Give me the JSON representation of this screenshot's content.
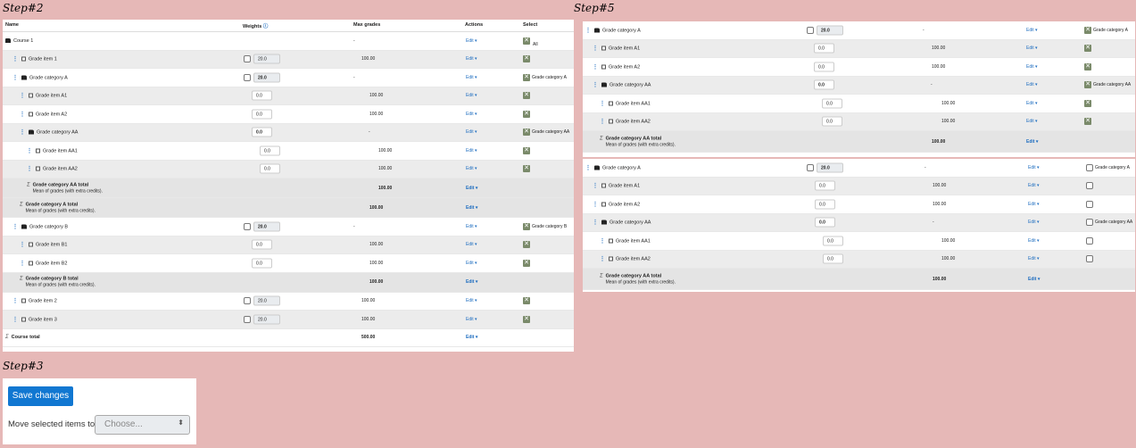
{
  "steps": {
    "s2": "Step#2",
    "s3": "Step#3",
    "s5": "Step#5"
  },
  "table": {
    "name": "Name",
    "weights": "Weights",
    "max": "Max grades",
    "actions": "Actions",
    "select": "Select",
    "all": "All"
  },
  "edit": "Edit",
  "mean": "Mean of grades (with extra credits).",
  "p1": [
    {
      "name": "Course 1",
      "icon": "fold",
      "mg": "-",
      "sel": "all"
    },
    {
      "name": "Grade item 1",
      "icon": "file",
      "w": "20.0",
      "mg": "100.00"
    },
    {
      "name": "Grade category A",
      "icon": "fold",
      "w": "20.0",
      "mg": "-",
      "xl": "Grade category A"
    },
    {
      "name": "Grade item A1",
      "icon": "file",
      "w": "0.0",
      "mg": "100.00"
    },
    {
      "name": "Grade item A2",
      "icon": "file",
      "w": "0.0",
      "mg": "100.00"
    },
    {
      "name": "Grade category AA",
      "icon": "fold",
      "w": "0.0",
      "mg": "-",
      "xl": "Grade category AA"
    },
    {
      "name": "Grade item AA1",
      "icon": "file",
      "w": "0.0",
      "mg": "100.00"
    },
    {
      "name": "Grade item AA2",
      "icon": "file",
      "w": "0.0",
      "mg": "100.00"
    },
    {
      "name": "Grade category AA total",
      "tot": true,
      "mg": "100.00"
    },
    {
      "name": "Grade category A total",
      "tot": true,
      "mg": "100.00"
    },
    {
      "name": "Grade category B",
      "icon": "fold",
      "w": "20.0",
      "mg": "-",
      "xl": "Grade category B"
    },
    {
      "name": "Grade item B1",
      "icon": "file",
      "w": "0.0",
      "mg": "100.00"
    },
    {
      "name": "Grade item B2",
      "icon": "file",
      "w": "0.0",
      "mg": "100.00"
    },
    {
      "name": "Grade category B total",
      "tot": true,
      "mg": "100.00"
    },
    {
      "name": "Grade item 2",
      "icon": "file",
      "w": "20.0",
      "mg": "100.00"
    },
    {
      "name": "Grade item 3",
      "icon": "file",
      "w": "20.0",
      "mg": "100.00"
    },
    {
      "name": "Course total",
      "ct": true,
      "mg": "500.00"
    }
  ],
  "p2": [
    {
      "name": "Grade category A",
      "icon": "fold",
      "w": "20.0",
      "mg": "-",
      "xl": "Grade category A"
    },
    {
      "name": "Grade item A1",
      "icon": "file",
      "w": "0.0",
      "mg": "100.00"
    },
    {
      "name": "Grade item A2",
      "icon": "file",
      "w": "0.0",
      "mg": "100.00"
    },
    {
      "name": "Grade category AA",
      "icon": "fold",
      "w": "0.0",
      "mg": "-",
      "xl": "Grade category AA"
    },
    {
      "name": "Grade item AA1",
      "icon": "file",
      "w": "0.0",
      "mg": "100.00"
    },
    {
      "name": "Grade item AA2",
      "icon": "file",
      "w": "0.0",
      "mg": "100.00"
    },
    {
      "name": "Grade category AA total",
      "tot": true,
      "mg": "100.00"
    }
  ],
  "p3": [
    {
      "name": "Grade category A",
      "icon": "fold",
      "w": "20.0",
      "mg": "-",
      "xl": "Grade category A"
    },
    {
      "name": "Grade item A1",
      "icon": "file",
      "w": "0.0",
      "mg": "100.00"
    },
    {
      "name": "Grade item A2",
      "icon": "file",
      "w": "0.0",
      "mg": "100.00"
    },
    {
      "name": "Grade category AA",
      "icon": "fold",
      "w": "0.0",
      "mg": "-",
      "xl": "Grade category AA"
    },
    {
      "name": "Grade item AA1",
      "icon": "file",
      "w": "0.0",
      "mg": "100.00"
    },
    {
      "name": "Grade item AA2",
      "icon": "file",
      "w": "0.0",
      "mg": "100.00"
    },
    {
      "name": "Grade category AA total",
      "tot": true,
      "mg": "100.00"
    }
  ],
  "bottom": {
    "save": "Save changes",
    "move": "Move selected items to",
    "choose": "Choose..."
  }
}
